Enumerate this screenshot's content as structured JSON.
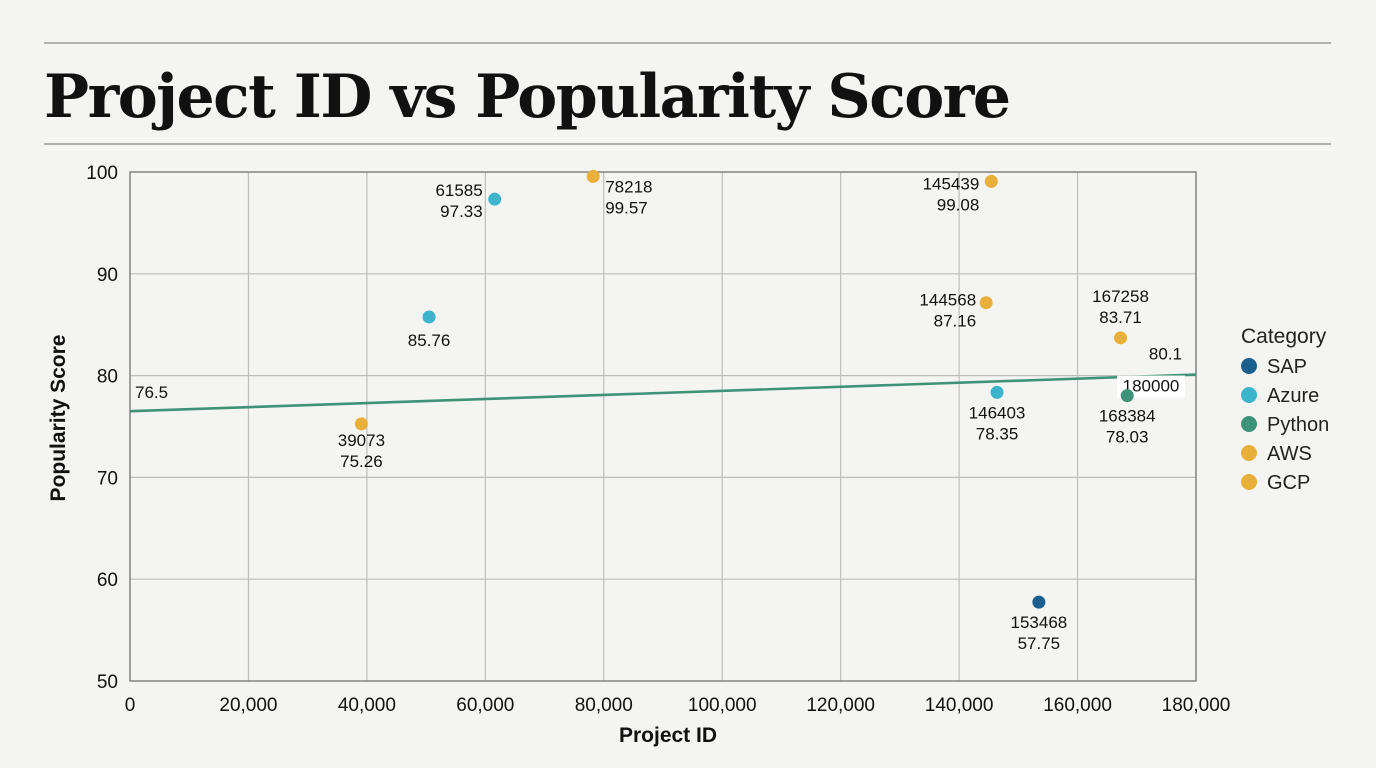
{
  "chart_data": {
    "type": "scatter",
    "title": "Project ID vs Popularity Score",
    "xlabel": "Project ID",
    "ylabel": "Popularity Score",
    "xlim": [
      0,
      180000
    ],
    "ylim": [
      50,
      100
    ],
    "x_ticks": [
      0,
      20000,
      40000,
      60000,
      80000,
      100000,
      120000,
      140000,
      160000,
      180000
    ],
    "x_tick_labels": [
      "0",
      "20,000",
      "40,000",
      "60,000",
      "80,000",
      "100,000",
      "120,000",
      "140,000",
      "160,000",
      "180,000"
    ],
    "y_ticks": [
      50,
      60,
      70,
      80,
      90,
      100
    ],
    "y_tick_labels": [
      "50",
      "60",
      "70",
      "80",
      "90",
      "100"
    ],
    "grid": true,
    "legend": {
      "title": "Category",
      "placement": "right",
      "entries": [
        {
          "name": "SAP",
          "color": "#1a5f8e"
        },
        {
          "name": "Azure",
          "color": "#3cb4cc"
        },
        {
          "name": "Python",
          "color": "#3d9278"
        },
        {
          "name": "AWS",
          "color": "#e8b03a"
        },
        {
          "name": "GCP",
          "color": "#e8b03a"
        }
      ]
    },
    "points": [
      {
        "x": 61585,
        "y": 97.33,
        "category": "Azure",
        "label_x": "61585",
        "label_y": "97.33"
      },
      {
        "x": 78218,
        "y": 99.57,
        "category": "AWS",
        "label_x": "78218",
        "label_y": "99.57"
      },
      {
        "x": 50500,
        "y": 85.76,
        "category": "Azure",
        "label_x": "",
        "label_y": "85.76"
      },
      {
        "x": 39073,
        "y": 75.26,
        "category": "AWS",
        "label_x": "39073",
        "label_y": "75.26"
      },
      {
        "x": 145439,
        "y": 99.08,
        "category": "AWS",
        "label_x": "145439",
        "label_y": "99.08"
      },
      {
        "x": 144568,
        "y": 87.16,
        "category": "AWS",
        "label_x": "144568",
        "label_y": "87.16"
      },
      {
        "x": 146403,
        "y": 78.35,
        "category": "Azure",
        "label_x": "146403",
        "label_y": "78.35"
      },
      {
        "x": 167258,
        "y": 83.71,
        "category": "AWS",
        "label_x": "167258",
        "label_y": "83.71"
      },
      {
        "x": 168384,
        "y": 78.03,
        "category": "Python",
        "label_x": "168384",
        "label_y": "78.03"
      },
      {
        "x": 153468,
        "y": 57.75,
        "category": "SAP",
        "label_x": "153468",
        "label_y": "57.75"
      }
    ],
    "trendline": {
      "start": {
        "x": 0,
        "y": 76.5,
        "label": "76.5"
      },
      "end": {
        "x": 180000,
        "y": 80.1,
        "label_y": "80.1",
        "label_x": "180000"
      },
      "color": "#3d9278"
    }
  }
}
